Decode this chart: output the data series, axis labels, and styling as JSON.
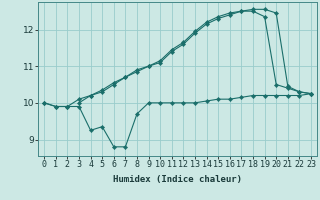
{
  "xlabel": "Humidex (Indice chaleur)",
  "ylabel": "",
  "bg_color": "#cce8e4",
  "grid_color": "#99cccc",
  "line_color": "#1a6e6a",
  "xlim": [
    -0.5,
    23.5
  ],
  "ylim": [
    8.55,
    12.75
  ],
  "yticks": [
    9,
    10,
    11,
    12
  ],
  "xticks": [
    0,
    1,
    2,
    3,
    4,
    5,
    6,
    7,
    8,
    9,
    10,
    11,
    12,
    13,
    14,
    15,
    16,
    17,
    18,
    19,
    20,
    21,
    22,
    23
  ],
  "line1_x": [
    0,
    1,
    2,
    3,
    4,
    5,
    6,
    7,
    8,
    9,
    10,
    11,
    12,
    13,
    14,
    15,
    16,
    17,
    18,
    19,
    20,
    21,
    22,
    23
  ],
  "line1_y": [
    10.0,
    9.9,
    9.9,
    9.9,
    9.25,
    9.35,
    8.8,
    8.8,
    9.7,
    10.0,
    10.0,
    10.0,
    10.0,
    10.0,
    10.05,
    10.1,
    10.1,
    10.15,
    10.2,
    10.2,
    10.2,
    10.2,
    10.2,
    10.25
  ],
  "line2_x": [
    0,
    1,
    2,
    3,
    4,
    5,
    6,
    7,
    8,
    9,
    10,
    11,
    12,
    13,
    14,
    15,
    16,
    17,
    18,
    19,
    20,
    21,
    22,
    23
  ],
  "line2_y": [
    10.0,
    9.9,
    9.9,
    10.1,
    10.2,
    10.3,
    10.5,
    10.7,
    10.85,
    11.0,
    11.1,
    11.4,
    11.6,
    11.9,
    12.15,
    12.3,
    12.4,
    12.5,
    12.5,
    12.35,
    10.5,
    10.4,
    10.3,
    10.25
  ],
  "line3_x": [
    3,
    4,
    5,
    6,
    7,
    8,
    9,
    10,
    11,
    12,
    13,
    14,
    15,
    16,
    17,
    18,
    19,
    20,
    21,
    22,
    23
  ],
  "line3_y": [
    10.0,
    10.2,
    10.35,
    10.55,
    10.7,
    10.9,
    11.0,
    11.15,
    11.45,
    11.65,
    11.95,
    12.2,
    12.35,
    12.45,
    12.5,
    12.55,
    12.55,
    12.45,
    10.45,
    10.3,
    10.25
  ],
  "marker": "D",
  "markersize": 2.2,
  "tick_fontsize": 6.0,
  "xlabel_fontsize": 6.5
}
